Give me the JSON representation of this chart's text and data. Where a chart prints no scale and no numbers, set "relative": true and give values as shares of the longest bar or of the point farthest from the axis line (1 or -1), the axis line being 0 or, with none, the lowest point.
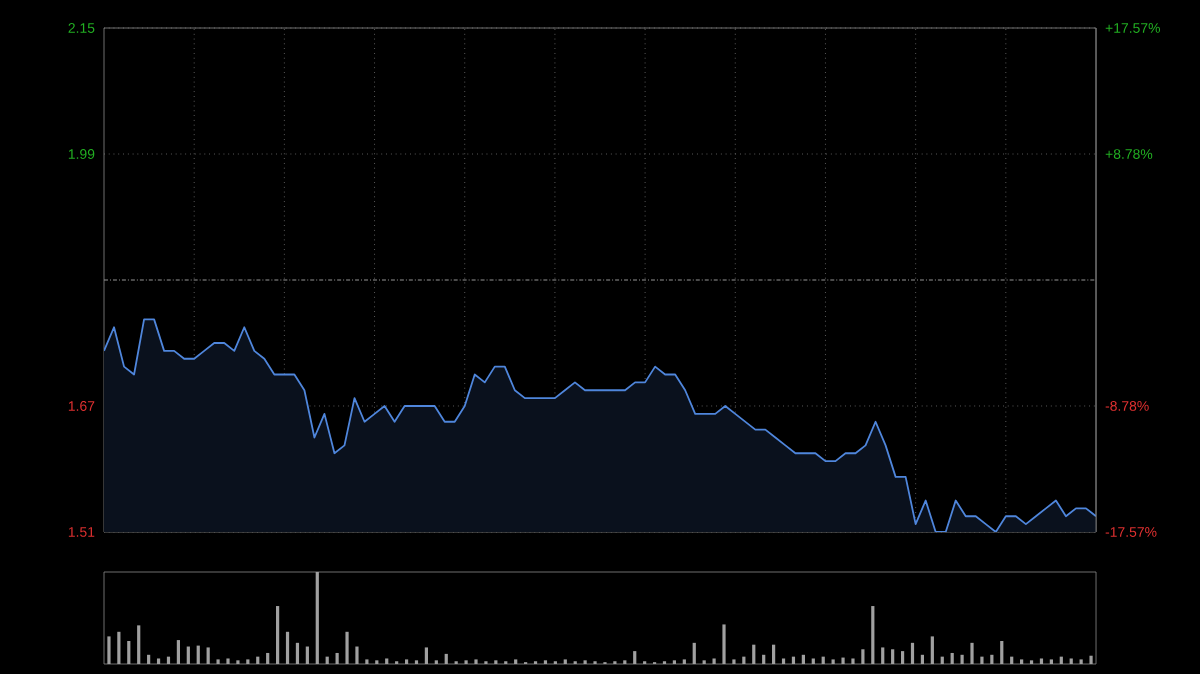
{
  "chart_data": [
    {
      "type": "area",
      "categories": [
        null,
        null,
        null,
        null,
        null,
        null,
        null,
        null,
        null,
        null,
        null,
        null,
        null,
        null,
        null,
        null,
        null,
        null,
        null,
        null,
        null,
        null,
        null,
        null,
        null,
        null,
        null,
        null,
        null,
        null,
        null,
        null,
        null,
        null,
        null,
        null,
        null,
        null,
        null,
        null,
        null,
        null,
        null,
        null,
        null,
        null,
        null,
        null,
        null,
        null,
        null,
        null,
        null,
        null,
        null,
        null,
        null,
        null,
        null,
        null,
        null,
        null,
        null,
        null,
        null,
        null,
        null,
        null,
        null,
        null,
        null,
        null,
        null,
        null,
        null,
        null,
        null,
        null,
        null,
        null,
        null,
        null,
        null,
        null,
        null,
        null,
        null,
        null,
        null,
        null,
        null,
        null,
        null,
        null,
        null,
        null,
        null,
        null,
        null,
        null
      ],
      "series": [
        {
          "color": "#4f86dc",
          "values": [
            1.74,
            1.77,
            1.72,
            1.71,
            1.78,
            1.78,
            1.74,
            1.74,
            1.73,
            1.73,
            1.74,
            1.75,
            1.75,
            1.74,
            1.77,
            1.74,
            1.73,
            1.71,
            1.71,
            1.71,
            1.69,
            1.63,
            1.66,
            1.61,
            1.62,
            1.68,
            1.65,
            1.66,
            1.67,
            1.65,
            1.67,
            1.67,
            1.67,
            1.67,
            1.65,
            1.65,
            1.67,
            1.71,
            1.7,
            1.72,
            1.72,
            1.69,
            1.68,
            1.68,
            1.68,
            1.68,
            1.69,
            1.7,
            1.69,
            1.69,
            1.69,
            1.69,
            1.69,
            1.7,
            1.7,
            1.72,
            1.71,
            1.71,
            1.69,
            1.66,
            1.66,
            1.66,
            1.67,
            1.66,
            1.65,
            1.64,
            1.64,
            1.63,
            1.62,
            1.61,
            1.61,
            1.61,
            1.6,
            1.6,
            1.61,
            1.61,
            1.62,
            1.65,
            1.62,
            1.58,
            1.58,
            1.52,
            1.55,
            1.51,
            1.51,
            1.55,
            1.53,
            1.53,
            1.52,
            1.51,
            1.53,
            1.53,
            1.52,
            1.53,
            1.54,
            1.55,
            1.53,
            1.54,
            1.54,
            1.53
          ]
        }
      ],
      "ylim": [
        1.51,
        2.15
      ],
      "yticks": [
        1.51,
        1.67,
        1.99,
        2.15
      ],
      "y2lim": [
        -17.57,
        17.57
      ],
      "y2ticks": [
        {
          "value": -17.57,
          "label": "-17.57%"
        },
        {
          "value": -8.78,
          "label": "-8.78%"
        },
        {
          "value": 8.78,
          "label": "+8.78%"
        },
        {
          "value": 17.57,
          "label": "+17.57%"
        }
      ],
      "ref_lines": [
        {
          "axis": "y",
          "value": 1.83,
          "line_style": "dashed"
        }
      ],
      "grid": true
    },
    {
      "type": "bar",
      "relative": true,
      "color": "#a0a0a0",
      "categories": [
        null,
        null,
        null,
        null,
        null,
        null,
        null,
        null,
        null,
        null,
        null,
        null,
        null,
        null,
        null,
        null,
        null,
        null,
        null,
        null,
        null,
        null,
        null,
        null,
        null,
        null,
        null,
        null,
        null,
        null,
        null,
        null,
        null,
        null,
        null,
        null,
        null,
        null,
        null,
        null,
        null,
        null,
        null,
        null,
        null,
        null,
        null,
        null,
        null,
        null,
        null,
        null,
        null,
        null,
        null,
        null,
        null,
        null,
        null,
        null,
        null,
        null,
        null,
        null,
        null,
        null,
        null,
        null,
        null,
        null,
        null,
        null,
        null,
        null,
        null,
        null,
        null,
        null,
        null,
        null,
        null,
        null,
        null,
        null,
        null,
        null,
        null,
        null,
        null,
        null,
        null,
        null,
        null,
        null,
        null,
        null,
        null,
        null,
        null,
        null
      ],
      "values": [
        0.3,
        0.35,
        0.25,
        0.42,
        0.1,
        0.06,
        0.08,
        0.26,
        0.19,
        0.2,
        0.18,
        0.05,
        0.06,
        0.04,
        0.05,
        0.08,
        0.12,
        0.63,
        0.35,
        0.23,
        0.19,
        1,
        0.08,
        0.12,
        0.35,
        0.19,
        0.05,
        0.04,
        0.06,
        0.03,
        0.05,
        0.04,
        0.18,
        0.04,
        0.11,
        0.03,
        0.04,
        0.05,
        0.03,
        0.04,
        0.03,
        0.05,
        0.02,
        0.03,
        0.04,
        0.03,
        0.05,
        0.03,
        0.04,
        0.03,
        0.02,
        0.03,
        0.04,
        0.14,
        0.03,
        0.02,
        0.03,
        0.04,
        0.05,
        0.23,
        0.04,
        0.06,
        0.43,
        0.05,
        0.08,
        0.21,
        0.1,
        0.21,
        0.06,
        0.08,
        0.1,
        0.06,
        0.08,
        0.05,
        0.07,
        0.06,
        0.16,
        0.63,
        0.18,
        0.16,
        0.14,
        0.23,
        0.1,
        0.3,
        0.08,
        0.12,
        0.1,
        0.23,
        0.08,
        0.1,
        0.25,
        0.08,
        0.05,
        0.04,
        0.06,
        0.05,
        0.08,
        0.06,
        0.05,
        0.09
      ]
    }
  ]
}
